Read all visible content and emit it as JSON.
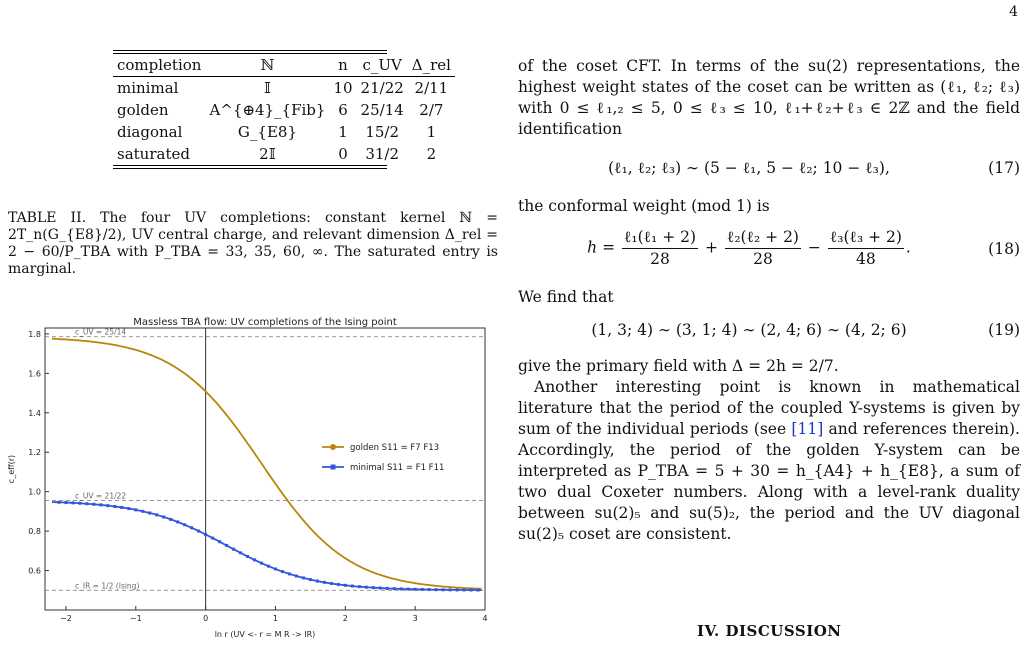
{
  "page_number": "4",
  "table": {
    "headers": [
      "completion",
      "ℕ",
      "n",
      "c_UV",
      "Δ_rel"
    ],
    "rows": [
      [
        "minimal",
        "𝕀",
        "10",
        "21/22",
        "2/11"
      ],
      [
        "golden",
        "A^{⊕4}_{Fib}",
        "6",
        "25/14",
        "2/7"
      ],
      [
        "diagonal",
        "G_{E8}",
        "1",
        "15/2",
        "1"
      ],
      [
        "saturated",
        "2𝕀",
        "0",
        "31/2",
        "2"
      ]
    ]
  },
  "caption": "TABLE II. The four UV completions: constant kernel ℕ = 2T_n(G_{E8}/2), UV central charge, and relevant dimension Δ_rel = 2 − 60/P_TBA with P_TBA = 33, 35, 60, ∞. The saturated entry is marginal.",
  "chart_data": {
    "type": "line",
    "title": "Massless TBA flow: UV completions of the Ising point",
    "xlabel": "ln r   (UV <-   r = M R   -> IR)",
    "ylabel": "c_eff(r)",
    "xlim": [
      -2.3,
      4.0
    ],
    "ylim": [
      0.4,
      1.83
    ],
    "xticks": [
      "−2",
      "−1",
      "0",
      "1",
      "2",
      "3",
      "4"
    ],
    "yticks": [
      "0.6",
      "0.8",
      "1.0",
      "1.2",
      "1.4",
      "1.6",
      "1.8"
    ],
    "hlines": [
      {
        "y": 1.7857,
        "label": "c_UV = 25/14"
      },
      {
        "y": 0.9545,
        "label": "c_UV = 21/22"
      },
      {
        "y": 0.5,
        "label": "c_IR = 1/2 (Ising)"
      }
    ],
    "vline_x": 0,
    "series": [
      {
        "name": "golden  S11 = F7 F13",
        "color": "#b8860b",
        "c_uv": 1.7857,
        "x0": 0.8,
        "w": 0.62
      },
      {
        "name": "minimal  S11 = F1 F11",
        "color": "#3355dd",
        "c_uv": 0.9545,
        "x0": 0.3,
        "w": 0.6
      }
    ],
    "legend": "right"
  },
  "text": {
    "p1": "of the coset CFT. In terms of the su(2) representations, the highest weight states of the coset can be written as (ℓ₁, ℓ₂; ℓ₃) with 0 ≤ ℓ₁,₂ ≤ 5, 0 ≤ ℓ₃ ≤ 10, ℓ₁+ℓ₂+ℓ₃ ∈ 2ℤ and the field identification",
    "eq17": "(ℓ₁, ℓ₂; ℓ₃) ∼ (5 − ℓ₁, 5 − ℓ₂; 10 − ℓ₃),",
    "eq17_num": "(17)",
    "p2": "the conformal weight (mod 1) is",
    "eq18_num": "(18)",
    "p3": "We find that",
    "eq19": "(1, 3; 4) ∼ (3, 1; 4) ∼ (2, 4; 6) ∼ (4, 2; 6)",
    "eq19_num": "(19)",
    "p4": "give the primary field with Δ = 2h = 2/7.",
    "p5a": "Another interesting point is known in mathematical literature that the period of the coupled Y-systems is given by sum of the individual periods (see ",
    "p5ref": "[11]",
    "p5b": " and references therein). Accordingly, the period of the golden Y-system can be interpreted as P_TBA = 5 + 30 = h_{A4} + h_{E8}, a sum of two dual Coxeter numbers. Along with a level-rank duality between su(2)₅ and su(5)₂, the period and the UV diagonal su(2)₅ coset are consistent.",
    "section": "IV.   DISCUSSION"
  }
}
